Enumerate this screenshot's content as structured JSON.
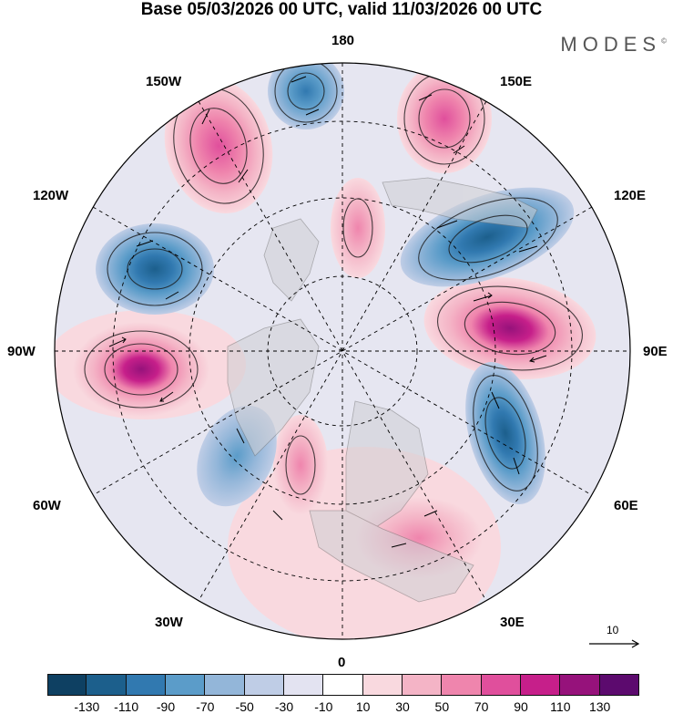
{
  "header": {
    "title": "Base 05/03/2026 00 UTC, valid 11/03/2026 00 UTC",
    "brand": "MODES",
    "brand_mark": "©"
  },
  "map": {
    "projection": "north-polar-stereographic",
    "longitude_labels": {
      "n180": "180",
      "w150": "150W",
      "e150": "150E",
      "w120": "120W",
      "e120": "120E",
      "w90": "90W",
      "e90": "90E",
      "w60": "60W",
      "e60": "60E",
      "w30": "30W",
      "e30": "30E",
      "s0": "0"
    },
    "reference_vector": "10",
    "anomaly_cells": [
      {
        "name": "positive-anomaly-north-atlantic-west",
        "sign": "positive",
        "peak": 110
      },
      {
        "name": "positive-anomaly-east-asia",
        "sign": "positive",
        "peak": 110
      },
      {
        "name": "positive-anomaly-north-pacific-east",
        "sign": "positive",
        "peak": 70
      },
      {
        "name": "positive-anomaly-north-pacific-west",
        "sign": "positive",
        "peak": 70
      },
      {
        "name": "positive-anomaly-arctic-bering",
        "sign": "positive",
        "peak": 50
      },
      {
        "name": "positive-anomaly-north-atlantic-central",
        "sign": "positive",
        "peak": 50
      },
      {
        "name": "positive-anomaly-europe",
        "sign": "positive",
        "peak": 50
      },
      {
        "name": "negative-anomaly-north-america-west",
        "sign": "negative",
        "peak": -90
      },
      {
        "name": "negative-anomaly-siberia",
        "sign": "negative",
        "peak": -90
      },
      {
        "name": "negative-anomaly-central-asia",
        "sign": "negative",
        "peak": -90
      },
      {
        "name": "negative-anomaly-aleutian",
        "sign": "negative",
        "peak": -70
      },
      {
        "name": "negative-anomaly-labrador",
        "sign": "negative",
        "peak": -50
      }
    ]
  },
  "colorbar": {
    "colors": [
      "#0e4062",
      "#1c5f8c",
      "#3179b0",
      "#5b9cc9",
      "#93b6d9",
      "#bfcde6",
      "#e3e3f1",
      "#ffffff",
      "#f9d9df",
      "#f4b4c6",
      "#ef85ad",
      "#e04f9c",
      "#c61f8a",
      "#96127b",
      "#5c0a6e"
    ],
    "ticks": [
      "-130",
      "-110",
      "-90",
      "-70",
      "-50",
      "-30",
      "-10",
      "10",
      "30",
      "50",
      "70",
      "90",
      "110",
      "130"
    ]
  }
}
